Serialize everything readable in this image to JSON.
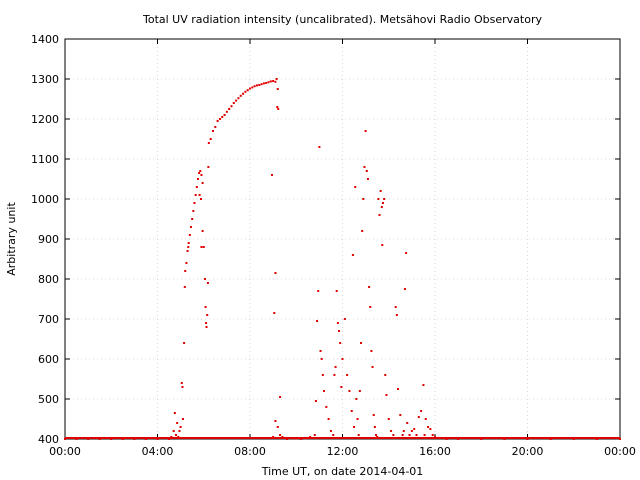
{
  "chart_data": {
    "type": "scatter",
    "title": "Total UV radiation intensity (uncalibrated). Metsähovi Radio Observatory",
    "xlabel": "Time UT, on date 2014-04-01",
    "ylabel": "Arbitrary unit",
    "x_unit": "hours UT",
    "xlim": [
      0,
      24
    ],
    "ylim": [
      400,
      1400
    ],
    "x_ticks": [
      {
        "value": 0,
        "label": "00:00"
      },
      {
        "value": 4,
        "label": "04:00"
      },
      {
        "value": 8,
        "label": "08:00"
      },
      {
        "value": 12,
        "label": "12:00"
      },
      {
        "value": 16,
        "label": "16:00"
      },
      {
        "value": 20,
        "label": "20:00"
      },
      {
        "value": 24,
        "label": "00:00"
      }
    ],
    "y_ticks": [
      400,
      500,
      600,
      700,
      800,
      900,
      1000,
      1100,
      1200,
      1300,
      1400
    ],
    "grid": true,
    "marker_color": "#e00000",
    "series": [
      {
        "points": [
          [
            0.0,
            400
          ],
          [
            0.5,
            400
          ],
          [
            1.0,
            400
          ],
          [
            1.5,
            400
          ],
          [
            2.0,
            400
          ],
          [
            2.5,
            400
          ],
          [
            3.0,
            400
          ],
          [
            3.5,
            400
          ],
          [
            4.0,
            400
          ],
          [
            4.5,
            400
          ],
          [
            4.6,
            405
          ],
          [
            4.7,
            420
          ],
          [
            4.75,
            465
          ],
          [
            4.8,
            410
          ],
          [
            4.85,
            440
          ],
          [
            4.9,
            405
          ],
          [
            4.95,
            420
          ],
          [
            5.0,
            430
          ],
          [
            5.05,
            540
          ],
          [
            5.08,
            530
          ],
          [
            5.1,
            450
          ],
          [
            5.15,
            640
          ],
          [
            5.18,
            780
          ],
          [
            5.2,
            820
          ],
          [
            5.25,
            840
          ],
          [
            5.3,
            870
          ],
          [
            5.33,
            880
          ],
          [
            5.35,
            890
          ],
          [
            5.4,
            910
          ],
          [
            5.45,
            930
          ],
          [
            5.5,
            950
          ],
          [
            5.55,
            970
          ],
          [
            5.6,
            990
          ],
          [
            5.65,
            1010
          ],
          [
            5.7,
            1030
          ],
          [
            5.75,
            1050
          ],
          [
            5.8,
            1065
          ],
          [
            5.85,
            1070
          ],
          [
            5.9,
            1060
          ],
          [
            5.95,
            1040
          ],
          [
            5.82,
            1010
          ],
          [
            5.88,
            1000
          ],
          [
            5.9,
            880
          ],
          [
            5.95,
            920
          ],
          [
            6.0,
            880
          ],
          [
            6.05,
            800
          ],
          [
            6.08,
            730
          ],
          [
            6.1,
            690
          ],
          [
            6.12,
            680
          ],
          [
            6.15,
            710
          ],
          [
            6.18,
            790
          ],
          [
            6.2,
            1080
          ],
          [
            6.22,
            1140
          ],
          [
            6.3,
            1150
          ],
          [
            6.4,
            1170
          ],
          [
            6.5,
            1180
          ],
          [
            6.6,
            1195
          ],
          [
            6.7,
            1200
          ],
          [
            6.8,
            1205
          ],
          [
            6.9,
            1210
          ],
          [
            7.0,
            1218
          ],
          [
            7.1,
            1225
          ],
          [
            7.2,
            1232
          ],
          [
            7.3,
            1240
          ],
          [
            7.4,
            1246
          ],
          [
            7.5,
            1252
          ],
          [
            7.6,
            1258
          ],
          [
            7.7,
            1263
          ],
          [
            7.8,
            1268
          ],
          [
            7.9,
            1272
          ],
          [
            8.0,
            1276
          ],
          [
            8.1,
            1279
          ],
          [
            8.2,
            1282
          ],
          [
            8.3,
            1284
          ],
          [
            8.4,
            1285
          ],
          [
            8.5,
            1287
          ],
          [
            8.6,
            1289
          ],
          [
            8.7,
            1290
          ],
          [
            8.8,
            1292
          ],
          [
            8.9,
            1294
          ],
          [
            9.0,
            1295
          ],
          [
            9.1,
            1293
          ],
          [
            9.15,
            1300
          ],
          [
            9.2,
            1275
          ],
          [
            9.18,
            1230
          ],
          [
            9.22,
            1225
          ],
          [
            8.95,
            1060
          ],
          [
            9.1,
            815
          ],
          [
            9.05,
            715
          ],
          [
            9.3,
            505
          ],
          [
            9.0,
            405
          ],
          [
            9.1,
            445
          ],
          [
            9.2,
            430
          ],
          [
            9.3,
            410
          ],
          [
            9.4,
            405
          ],
          [
            9.6,
            400
          ],
          [
            9.8,
            402
          ],
          [
            10.0,
            401
          ],
          [
            10.2,
            400
          ],
          [
            10.4,
            402
          ],
          [
            10.6,
            405
          ],
          [
            10.8,
            410
          ],
          [
            10.85,
            495
          ],
          [
            10.9,
            695
          ],
          [
            10.95,
            770
          ],
          [
            11.0,
            1130
          ],
          [
            11.05,
            620
          ],
          [
            11.1,
            600
          ],
          [
            11.15,
            560
          ],
          [
            11.2,
            520
          ],
          [
            11.3,
            480
          ],
          [
            11.4,
            450
          ],
          [
            11.5,
            420
          ],
          [
            11.6,
            410
          ],
          [
            11.65,
            560
          ],
          [
            11.7,
            580
          ],
          [
            11.75,
            770
          ],
          [
            11.8,
            690
          ],
          [
            11.85,
            670
          ],
          [
            11.9,
            640
          ],
          [
            11.95,
            530
          ],
          [
            12.0,
            600
          ],
          [
            12.1,
            700
          ],
          [
            12.2,
            560
          ],
          [
            12.3,
            520
          ],
          [
            12.4,
            470
          ],
          [
            12.45,
            860
          ],
          [
            12.5,
            430
          ],
          [
            12.55,
            1030
          ],
          [
            12.6,
            500
          ],
          [
            12.65,
            450
          ],
          [
            12.7,
            410
          ],
          [
            12.75,
            520
          ],
          [
            12.8,
            640
          ],
          [
            12.85,
            920
          ],
          [
            12.9,
            1000
          ],
          [
            12.95,
            1080
          ],
          [
            13.0,
            1170
          ],
          [
            13.05,
            1070
          ],
          [
            13.1,
            1050
          ],
          [
            13.15,
            780
          ],
          [
            13.2,
            730
          ],
          [
            13.25,
            620
          ],
          [
            13.3,
            580
          ],
          [
            13.35,
            460
          ],
          [
            13.4,
            430
          ],
          [
            13.45,
            410
          ],
          [
            13.5,
            405
          ],
          [
            13.55,
            1000
          ],
          [
            13.6,
            960
          ],
          [
            13.65,
            1020
          ],
          [
            13.7,
            980
          ],
          [
            13.72,
            885
          ],
          [
            13.75,
            990
          ],
          [
            13.8,
            1000
          ],
          [
            13.85,
            560
          ],
          [
            13.9,
            510
          ],
          [
            14.0,
            450
          ],
          [
            14.1,
            420
          ],
          [
            14.2,
            410
          ],
          [
            14.3,
            730
          ],
          [
            14.35,
            710
          ],
          [
            14.4,
            525
          ],
          [
            14.5,
            460
          ],
          [
            14.6,
            410
          ],
          [
            14.65,
            420
          ],
          [
            14.7,
            775
          ],
          [
            14.75,
            865
          ],
          [
            14.8,
            440
          ],
          [
            14.9,
            410
          ],
          [
            15.0,
            420
          ],
          [
            15.1,
            425
          ],
          [
            15.2,
            410
          ],
          [
            15.3,
            455
          ],
          [
            15.4,
            470
          ],
          [
            15.5,
            535
          ],
          [
            15.55,
            410
          ],
          [
            15.6,
            450
          ],
          [
            15.7,
            430
          ],
          [
            15.8,
            425
          ],
          [
            15.9,
            410
          ],
          [
            16.0,
            405
          ],
          [
            16.5,
            400
          ],
          [
            17.0,
            400
          ],
          [
            18.0,
            400
          ],
          [
            19.0,
            400
          ],
          [
            20.0,
            400
          ],
          [
            21.0,
            400
          ],
          [
            22.0,
            400
          ],
          [
            23.0,
            400
          ],
          [
            24.0,
            400
          ]
        ]
      }
    ]
  }
}
